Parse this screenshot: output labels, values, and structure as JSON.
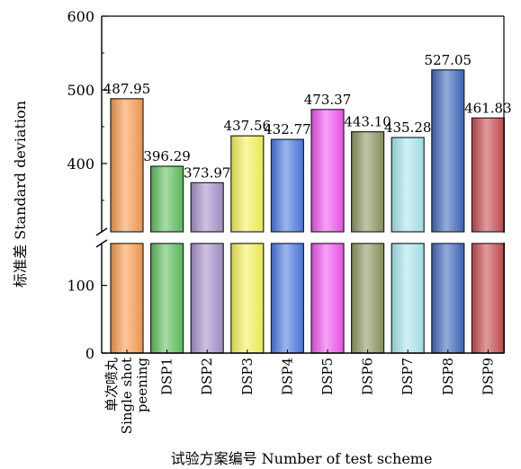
{
  "chart_data": {
    "type": "bar",
    "xlabel": "试验方案编号 Number of test scheme",
    "ylabel": "标准差 Standard deviation",
    "categories": [
      [
        "单次喷丸",
        "Single shot",
        "peening"
      ],
      [
        "DSP1"
      ],
      [
        "DSP2"
      ],
      [
        "DSP3"
      ],
      [
        "DSP4"
      ],
      [
        "DSP5"
      ],
      [
        "DSP6"
      ],
      [
        "DSP7"
      ],
      [
        "DSP8"
      ],
      [
        "DSP9"
      ]
    ],
    "values": [
      487.95,
      396.29,
      373.97,
      437.56,
      432.77,
      473.37,
      443.1,
      435.28,
      527.05,
      461.83
    ],
    "value_labels": [
      "487.95",
      "396.29",
      "373.97",
      "437.56",
      "432.77",
      "473.37",
      "443.10",
      "435.28",
      "527.05",
      "461.83"
    ],
    "colors": [
      "#F79A4E",
      "#5DBE5D",
      "#A590C8",
      "#F2F25A",
      "#4A78E0",
      "#EE55EE",
      "#8A9660",
      "#A8E6EC",
      "#3E66BB",
      "#C44A4E"
    ],
    "ylim": [
      0,
      600
    ],
    "broken_axis": {
      "lower": [
        0,
        150
      ],
      "upper": [
        300,
        600
      ]
    },
    "yticks": [
      {
        "value": 0,
        "label": "0"
      },
      {
        "value": 100,
        "label": "100"
      },
      {
        "value": 400,
        "label": "400"
      },
      {
        "value": 500,
        "label": "500"
      },
      {
        "value": 600,
        "label": "600"
      }
    ],
    "grid": false
  }
}
